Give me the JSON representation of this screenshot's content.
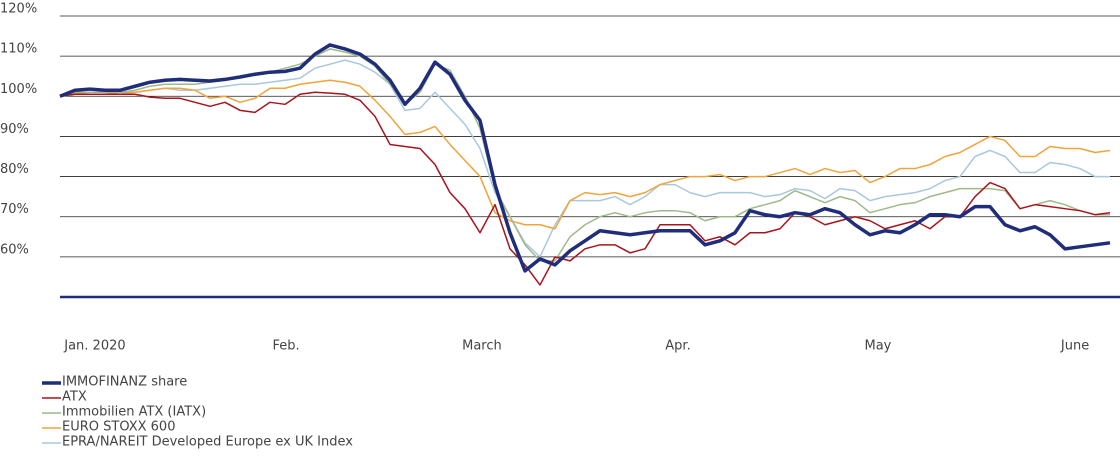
{
  "chart_data": {
    "type": "line",
    "x": [
      0,
      1,
      2,
      3,
      4,
      5,
      6,
      7,
      8,
      9,
      10,
      11,
      12,
      13,
      14,
      15,
      16,
      17,
      18,
      19,
      20,
      21,
      22,
      23,
      24,
      25,
      26,
      27,
      28,
      29,
      30,
      31,
      32,
      33,
      34,
      35,
      36,
      37,
      38,
      39,
      40,
      41,
      42,
      43,
      44,
      45,
      46,
      47,
      48,
      49,
      50,
      51,
      52,
      53,
      54,
      55,
      56,
      57,
      58,
      59,
      60,
      61,
      62,
      63,
      64,
      65,
      66,
      67,
      68,
      69,
      70
    ],
    "xlim": [
      0,
      70
    ],
    "xticks": [
      {
        "value": 2.33,
        "label": "Jan. 2020"
      },
      {
        "value": 15.07,
        "label": "Feb."
      },
      {
        "value": 28.13,
        "label": "March"
      },
      {
        "value": 41.2,
        "label": "Apr."
      },
      {
        "value": 54.53,
        "label": "May"
      },
      {
        "value": 67.67,
        "label": "June"
      }
    ],
    "ylim": [
      50,
      120
    ],
    "yticks": [
      {
        "value": 60,
        "label": "60%"
      },
      {
        "value": 70,
        "label": "70%"
      },
      {
        "value": 80,
        "label": "80%"
      },
      {
        "value": 90,
        "label": "90%"
      },
      {
        "value": 100,
        "label": "100%"
      },
      {
        "value": 110,
        "label": "110%"
      },
      {
        "value": 120,
        "label": "120%"
      }
    ],
    "grid": true,
    "legend": "bottom-left",
    "series": [
      {
        "name": "IMMOFINANZ share",
        "color": "#1f2d7a",
        "values": [
          100,
          101.5,
          101.8,
          101.5,
          101.5,
          102.5,
          103.5,
          104,
          104.2,
          104,
          103.8,
          104.2,
          104.8,
          105.5,
          106,
          106.2,
          107,
          110.5,
          112.8,
          111.8,
          110.5,
          108,
          104,
          98,
          102,
          108.5,
          105.5,
          99,
          94,
          78,
          66,
          56.5,
          59.5,
          58,
          61.5,
          64,
          66.5,
          66,
          65.5,
          66,
          66.5,
          66.5,
          66.5,
          63,
          64,
          66,
          71.5,
          70.5,
          70,
          71,
          70.5,
          72,
          71,
          68,
          65.5,
          66.5,
          66,
          68,
          70.5,
          70.5,
          70,
          72.5,
          72.5,
          68,
          66.5,
          67.5,
          65.5,
          62,
          62.5,
          63,
          63.5
        ]
      },
      {
        "name": "ATX",
        "color": "#a8141c",
        "values": [
          100,
          100.5,
          100.5,
          100.5,
          100.5,
          100.5,
          99.8,
          99.5,
          99.5,
          98.5,
          97.5,
          98.5,
          96.5,
          96,
          98.5,
          98,
          100.5,
          101,
          100.8,
          100.5,
          99,
          95,
          88,
          87.5,
          87,
          83,
          76,
          72,
          66,
          73,
          62,
          58,
          53,
          60,
          59,
          62,
          63,
          63,
          61,
          62,
          68,
          68,
          68,
          64,
          65,
          63,
          66,
          66,
          67,
          71,
          70,
          68,
          69,
          70,
          69,
          67,
          68,
          69,
          67,
          70,
          70,
          75,
          78.5,
          77,
          72,
          73,
          72.5,
          72,
          71.5,
          70.5,
          71
        ]
      },
      {
        "name": "Immobilien ATX (IATX)",
        "color": "#9fb98b",
        "values": [
          100,
          101,
          101,
          101,
          101,
          101.5,
          102.5,
          103,
          103,
          103,
          103.5,
          104,
          105,
          105.5,
          106,
          107,
          108,
          110,
          111.8,
          111,
          110,
          107.5,
          103,
          98,
          101,
          108,
          106.5,
          100,
          92,
          77,
          70,
          63,
          59,
          59,
          65,
          68,
          70,
          71,
          70,
          71,
          71.5,
          71.5,
          71,
          69,
          70,
          70,
          72,
          73,
          74,
          76.5,
          75,
          73.5,
          75,
          74,
          71,
          72,
          73,
          73.5,
          75,
          76,
          77,
          77,
          77,
          76.5,
          72,
          73,
          74,
          73,
          71.5,
          70.5,
          70.5
        ]
      },
      {
        "name": "EURO STOXX 600",
        "color": "#f2a33a",
        "values": [
          100,
          100.8,
          100.5,
          100.5,
          101,
          101,
          101.5,
          102,
          102,
          101.5,
          99.5,
          100,
          98.5,
          99.5,
          102,
          102,
          103,
          103.5,
          104,
          103.5,
          102.5,
          99,
          95,
          90.5,
          91,
          92.5,
          88,
          84,
          80,
          71,
          69,
          68,
          68,
          67,
          74,
          76,
          75.5,
          76,
          75,
          76,
          78,
          79,
          80,
          80,
          80.5,
          79,
          80,
          80,
          81,
          82,
          80.5,
          82,
          81,
          81.5,
          78.5,
          80,
          82,
          82,
          83,
          85,
          86,
          88,
          90,
          89,
          85,
          85,
          87.5,
          87,
          87,
          86,
          86.5
        ]
      },
      {
        "name": "EPRA/NAREIT Developed Europe ex UK Index",
        "color": "#a9c8dd",
        "values": [
          100,
          100.5,
          100.5,
          100.5,
          100.5,
          101,
          101.5,
          102,
          101.5,
          101.5,
          102,
          102.5,
          103,
          103,
          103.5,
          104,
          104.5,
          107,
          108,
          109,
          108,
          106,
          103,
          96.5,
          97,
          101,
          97,
          93,
          87,
          76,
          70,
          63.5,
          60,
          68,
          74,
          74,
          74,
          75,
          73,
          75,
          78,
          78,
          76,
          75,
          76,
          76,
          76,
          75,
          75.5,
          77,
          76.5,
          74.5,
          77,
          76.5,
          74,
          75,
          75.5,
          76,
          77,
          79,
          80,
          85,
          86.5,
          85,
          81,
          81,
          83.5,
          83,
          82,
          80,
          80
        ]
      }
    ]
  }
}
